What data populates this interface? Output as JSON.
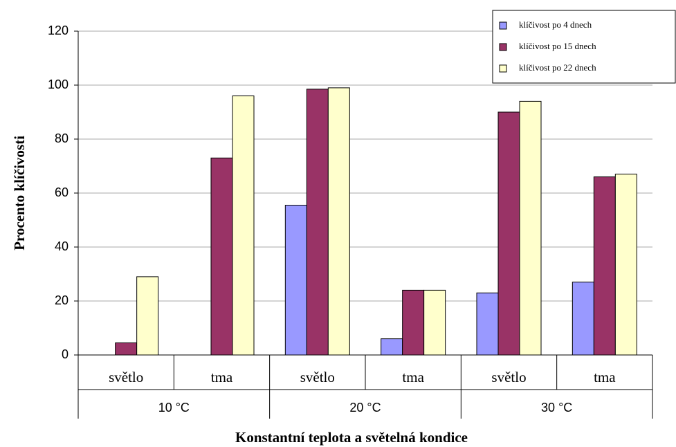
{
  "chart_data": {
    "type": "bar",
    "y_label": "Procento klíčivosti",
    "x_label": "Konstantní teplota a světelná kondice",
    "categories": [
      "světlo",
      "tma",
      "světlo",
      "tma",
      "světlo",
      "tma"
    ],
    "groups": [
      "10 °C",
      "20 °C",
      "30 °C"
    ],
    "series": [
      {
        "name": "klíčivost po 4 dnech",
        "color": "#9999ff",
        "values": [
          0,
          0,
          55.5,
          6,
          23,
          27
        ]
      },
      {
        "name": "klíčivost po 15 dnech",
        "color": "#993366",
        "values": [
          4.5,
          73,
          98.5,
          24,
          90,
          66
        ]
      },
      {
        "name": "klíčivost po 22 dnech",
        "color": "#ffffcc",
        "values": [
          29,
          96,
          99,
          24,
          94,
          67
        ]
      }
    ],
    "ylim": [
      0,
      120
    ],
    "yticks": [
      0,
      20,
      40,
      60,
      80,
      100,
      120
    ],
    "grid": true,
    "legend": "upper right"
  }
}
